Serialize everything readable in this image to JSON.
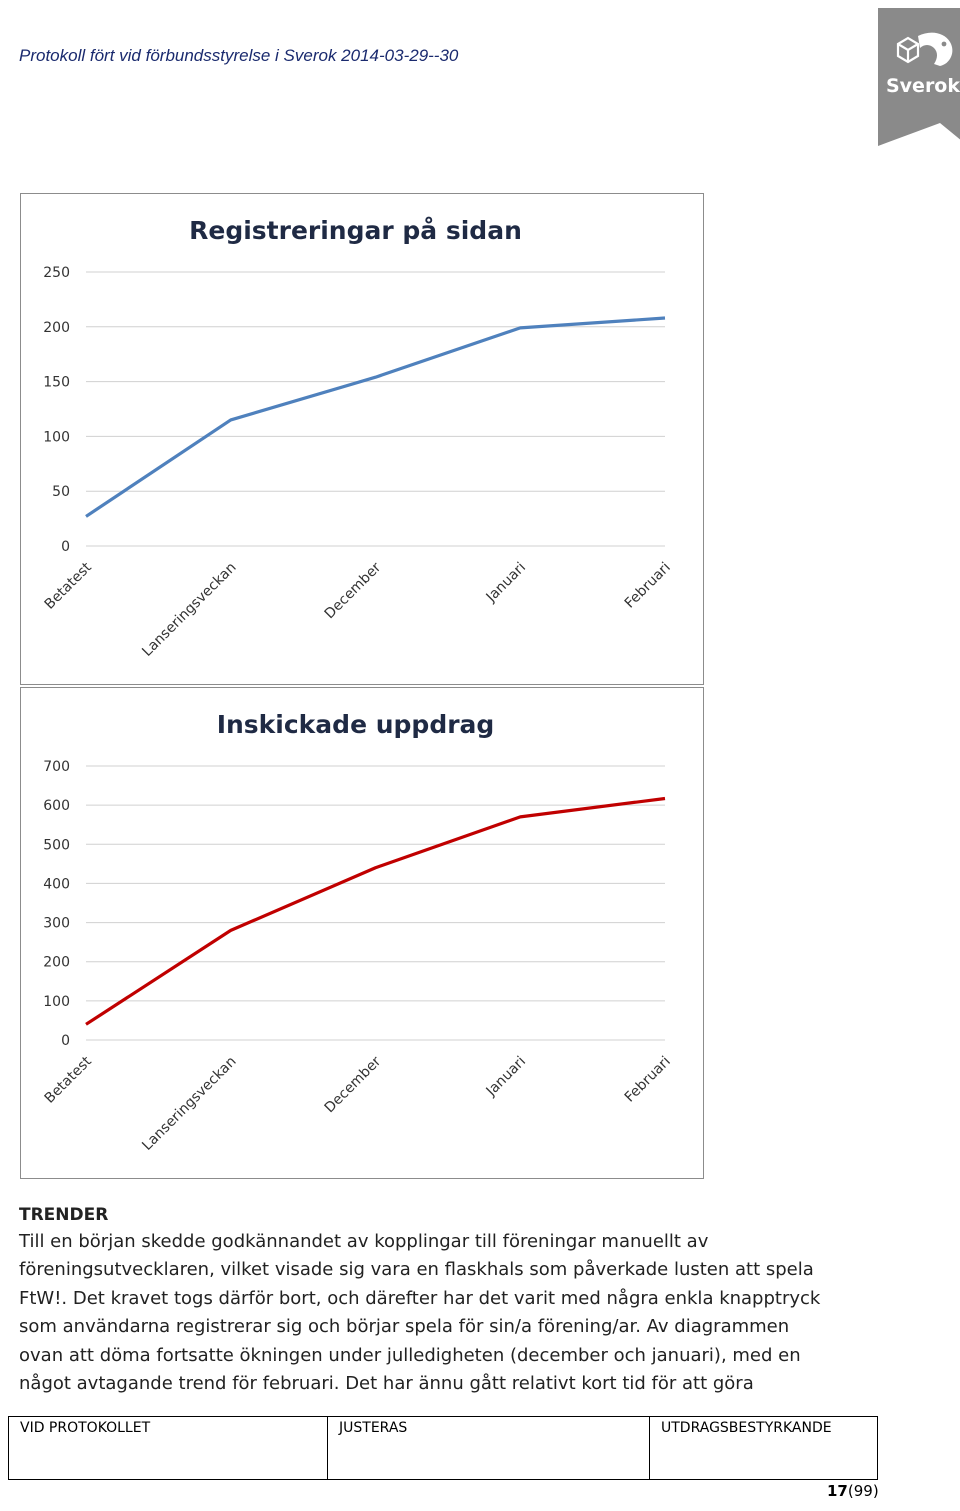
{
  "header": {
    "title": "Protokoll fört vid förbundsstyrelse i Sverok 2014-03-29--30"
  },
  "logo": {
    "text": "Sverok",
    "bg": "#8a8a8a"
  },
  "chart_data": [
    {
      "type": "line",
      "title": "Registreringar på sidan",
      "categories": [
        "Betatest",
        "Lanseringsveckan",
        "December",
        "Januari",
        "Februari"
      ],
      "series": [
        {
          "values": [
            27,
            115,
            154,
            199,
            208
          ],
          "color": "#4f81bd"
        }
      ],
      "ylim": [
        0,
        250
      ],
      "yticks": [
        0,
        50,
        100,
        150,
        200,
        250
      ],
      "grid": true
    },
    {
      "type": "line",
      "title": "Inskickade uppdrag",
      "categories": [
        "Betatest",
        "Lanseringsveckan",
        "December",
        "Januari",
        "Februari"
      ],
      "series": [
        {
          "values": [
            40,
            280,
            440,
            570,
            617
          ],
          "color": "#c00000"
        }
      ],
      "ylim": [
        0,
        700
      ],
      "yticks": [
        0,
        100,
        200,
        300,
        400,
        500,
        600,
        700
      ],
      "grid": true
    }
  ],
  "body": {
    "heading": "TRENDER",
    "lines": [
      "Till en början skedde godkännandet av kopplingar till föreningar manuellt av",
      "föreningsutvecklaren, vilket visade sig vara en flaskhals som påverkade lusten att spela",
      "FtW!. Det kravet togs därför bort, och därefter har det varit med några enkla knapptryck",
      "som användarna registrerar sig och börjar spela för sin/a förening/ar. Av diagrammen",
      "ovan att döma fortsatte ökningen under julledigheten (december och januari), med en",
      "något avtagande trend för februari. Det har ännu gått relativt kort tid för att göra"
    ]
  },
  "footer": {
    "col1": "VID PROTOKOLLET",
    "col2": "JUSTERAS",
    "col3": "UTDRAGSBESTYRKANDE",
    "page_current": "17",
    "page_total": "(99)"
  }
}
